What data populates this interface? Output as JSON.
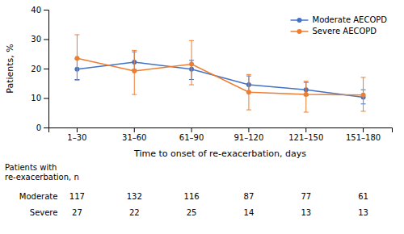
{
  "chart_data": {
    "type": "line",
    "categories": [
      "1–30",
      "31–60",
      "61–90",
      "91–120",
      "121–150",
      "151–180"
    ],
    "series": [
      {
        "name": "Moderate AECOPD",
        "color": "#4472C4",
        "marker": "circle",
        "line_style": "solid",
        "values": [
          19.8,
          22.2,
          19.8,
          14.5,
          12.8,
          10.3
        ],
        "error_low": [
          3.5,
          2.5,
          3.5,
          2.5,
          2.0,
          2.3
        ],
        "error_high": [
          3.5,
          3.5,
          3.0,
          3.0,
          2.5,
          2.5
        ]
      },
      {
        "name": "Severe AECOPD",
        "color": "#ED7D31",
        "marker": "circle",
        "line_style": "solid",
        "values": [
          23.5,
          19.2,
          21.5,
          12.0,
          11.2,
          11.0
        ],
        "error_low": [
          7.5,
          8.0,
          7.0,
          6.0,
          6.0,
          5.5
        ],
        "error_high": [
          8.0,
          7.0,
          8.0,
          6.0,
          4.5,
          6.0
        ]
      }
    ],
    "ylabel": "Patients, %",
    "xlabel": "Time to onset of re-exacerbation, days",
    "ylim": [
      0,
      40
    ],
    "yticks": [
      0,
      10,
      20,
      30,
      40
    ],
    "grid": false,
    "legend": "upper right",
    "table": {
      "header": "Patients with\nre-exacerbation, n",
      "rows": [
        "Moderate",
        "Severe"
      ],
      "values": [
        [
          117,
          132,
          116,
          87,
          77,
          61
        ],
        [
          27,
          22,
          25,
          14,
          13,
          13
        ]
      ]
    }
  }
}
